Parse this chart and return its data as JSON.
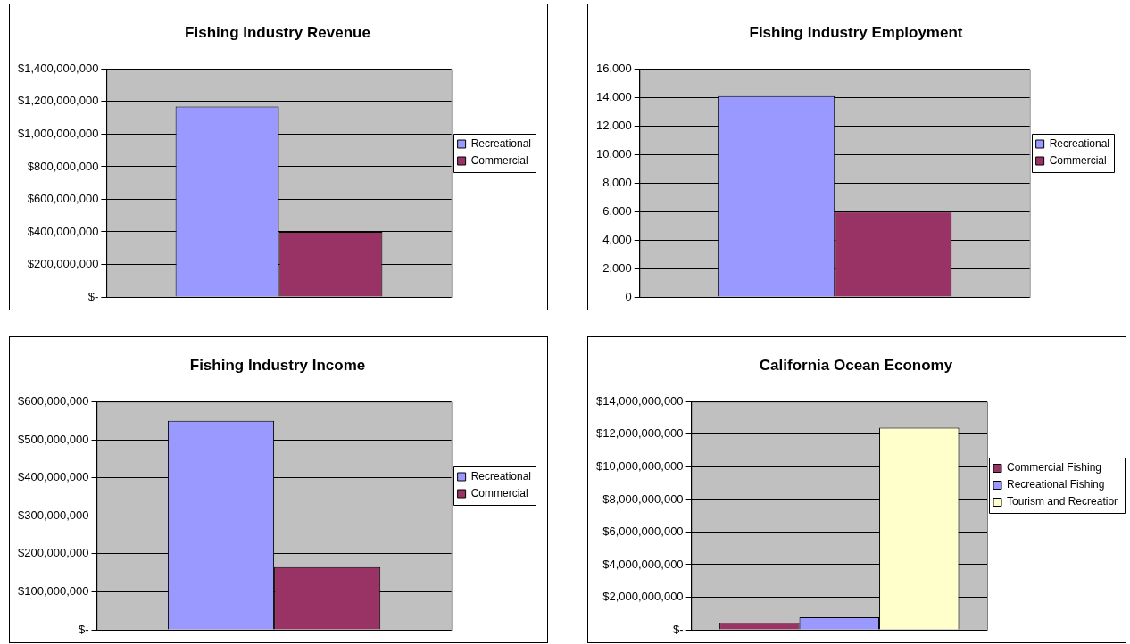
{
  "chart_data": [
    {
      "type": "bar",
      "title": "Fishing Industry Revenue",
      "categories": [
        null
      ],
      "series": [
        {
          "name": "Recreational",
          "color": "#9999ff",
          "values": [
            1170000000
          ]
        },
        {
          "name": "Commercial",
          "color": "#993366",
          "values": [
            400000000
          ]
        }
      ],
      "ylim": [
        0,
        1400000000
      ],
      "yticks": [
        {
          "value": 0,
          "label": "$-"
        },
        {
          "value": 200000000,
          "label": "$200,000,000"
        },
        {
          "value": 400000000,
          "label": "$400,000,000"
        },
        {
          "value": 600000000,
          "label": "$600,000,000"
        },
        {
          "value": 800000000,
          "label": "$800,000,000"
        },
        {
          "value": 1000000000,
          "label": "$1,000,000,000"
        },
        {
          "value": 1200000000,
          "label": "$1,200,000,000"
        },
        {
          "value": 1400000000,
          "label": "$1,400,000,000"
        }
      ],
      "grid": "y",
      "legend": "right"
    },
    {
      "type": "bar",
      "title": "Fishing Industry Employment",
      "categories": [
        null
      ],
      "series": [
        {
          "name": "Recreational",
          "color": "#9999ff",
          "values": [
            14100
          ]
        },
        {
          "name": "Commercial",
          "color": "#993366",
          "values": [
            6000
          ]
        }
      ],
      "ylim": [
        0,
        16000
      ],
      "yticks": [
        0,
        {
          "value": 2000,
          "label": "2,000"
        },
        {
          "value": 4000,
          "label": "4,000"
        },
        {
          "value": 6000,
          "label": "6,000"
        },
        {
          "value": 8000,
          "label": "8,000"
        },
        {
          "value": 10000,
          "label": "10,000"
        },
        {
          "value": 12000,
          "label": "12,000"
        },
        {
          "value": 14000,
          "label": "14,000"
        },
        {
          "value": 16000,
          "label": "16,000"
        }
      ],
      "grid": "y",
      "legend": "right"
    },
    {
      "type": "bar",
      "title": "Fishing Industry Income",
      "categories": [
        null
      ],
      "series": [
        {
          "name": "Recreational",
          "color": "#9999ff",
          "values": [
            550000000
          ]
        },
        {
          "name": "Commercial",
          "color": "#993366",
          "values": [
            165000000
          ]
        }
      ],
      "ylim": [
        0,
        600000000
      ],
      "yticks": [
        {
          "value": 0,
          "label": "$-"
        },
        {
          "value": 100000000,
          "label": "$100,000,000"
        },
        {
          "value": 200000000,
          "label": "$200,000,000"
        },
        {
          "value": 300000000,
          "label": "$300,000,000"
        },
        {
          "value": 400000000,
          "label": "$400,000,000"
        },
        {
          "value": 500000000,
          "label": "$500,000,000"
        },
        {
          "value": 600000000,
          "label": "$600,000,000"
        }
      ],
      "grid": "y",
      "legend": "right"
    },
    {
      "type": "bar",
      "title": "California Ocean Economy",
      "categories": [
        null
      ],
      "series": [
        {
          "name": "Commercial Fishing",
          "color": "#993366",
          "values": [
            430000000
          ]
        },
        {
          "name": "Recreational Fishing",
          "color": "#9999ff",
          "values": [
            770000000
          ]
        },
        {
          "name": "Tourism and Recreation",
          "color": "#ffffcc",
          "values": [
            12400000000
          ]
        }
      ],
      "ylim": [
        0,
        14000000000
      ],
      "yticks": [
        {
          "value": 0,
          "label": "$-"
        },
        {
          "value": 2000000000,
          "label": "$2,000,000,000"
        },
        {
          "value": 4000000000,
          "label": "$4,000,000,000"
        },
        {
          "value": 6000000000,
          "label": "$6,000,000,000"
        },
        {
          "value": 8000000000,
          "label": "$8,000,000,000"
        },
        {
          "value": 10000000000,
          "label": "$10,000,000,000"
        },
        {
          "value": 12000000000,
          "label": "$12,000,000,000"
        },
        {
          "value": 14000000000,
          "label": "$14,000,000,000"
        }
      ],
      "grid": "y",
      "legend": "right"
    }
  ]
}
